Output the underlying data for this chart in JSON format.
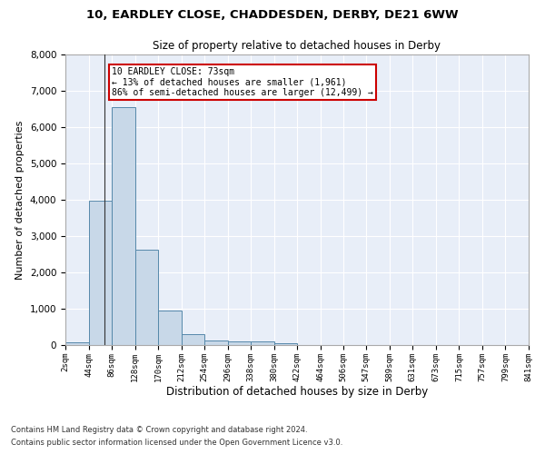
{
  "title_line1": "10, EARDLEY CLOSE, CHADDESDEN, DERBY, DE21 6WW",
  "title_line2": "Size of property relative to detached houses in Derby",
  "xlabel": "Distribution of detached houses by size in Derby",
  "ylabel": "Number of detached properties",
  "bar_color": "#c8d8e8",
  "bar_edge_color": "#5588aa",
  "background_color": "#e8eef8",
  "grid_color": "#ffffff",
  "annotation_box_color": "#cc0000",
  "annotation_line1": "10 EARDLEY CLOSE: 73sqm",
  "annotation_line2": "← 13% of detached houses are smaller (1,961)",
  "annotation_line3": "86% of semi-detached houses are larger (12,499) →",
  "property_size": 73,
  "footer_line1": "Contains HM Land Registry data © Crown copyright and database right 2024.",
  "footer_line2": "Contains public sector information licensed under the Open Government Licence v3.0.",
  "bin_edges": [
    2,
    44,
    86,
    128,
    170,
    212,
    254,
    296,
    338,
    380,
    422,
    464,
    506,
    547,
    589,
    631,
    673,
    715,
    757,
    799,
    841
  ],
  "bar_heights": [
    75,
    3980,
    6560,
    2620,
    950,
    310,
    120,
    110,
    95,
    55,
    0,
    0,
    0,
    0,
    0,
    0,
    0,
    0,
    0,
    0
  ],
  "ylim": [
    0,
    8000
  ],
  "yticks": [
    0,
    1000,
    2000,
    3000,
    4000,
    5000,
    6000,
    7000,
    8000
  ]
}
